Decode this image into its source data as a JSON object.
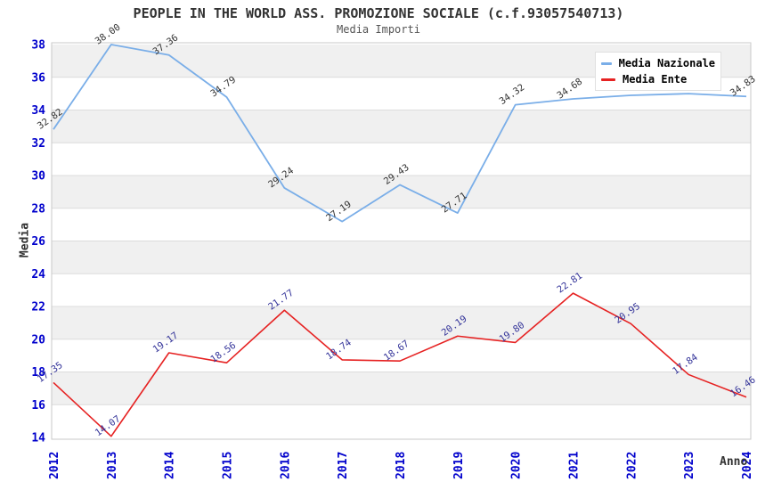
{
  "header": {
    "title": "PEOPLE IN THE WORLD ASS. PROMOZIONE SOCIALE (c.f.93057540713)",
    "subtitle": "Media Importi"
  },
  "colors": {
    "axis_tick_label": "#0000CC",
    "national_line": "#7AAEE8",
    "entity_line": "#E62222",
    "national_point_label": "#333333",
    "entity_point_label": "#333399",
    "band_gray": "#f0f0f0",
    "gridline": "#dcdcdc",
    "plot_border": "#c8c8c8"
  },
  "chart_data": {
    "type": "line",
    "x": [
      2012,
      2013,
      2014,
      2015,
      2016,
      2017,
      2018,
      2019,
      2020,
      2021,
      2022,
      2023,
      2024
    ],
    "series": [
      {
        "name": "Media Nazionale",
        "color": "#7AAEE8",
        "label_color": "#333333",
        "values": [
          32.82,
          38.0,
          37.36,
          34.79,
          29.24,
          27.19,
          29.43,
          27.71,
          34.32,
          34.68,
          34.9,
          35.0,
          34.83
        ],
        "labels": [
          "32.82",
          "38.00",
          "37.36",
          "34.79",
          "29.24",
          "27.19",
          "29.43",
          "27.71",
          "34.32",
          "34.68",
          "",
          "",
          "34.83"
        ]
      },
      {
        "name": "Media Ente",
        "color": "#E62222",
        "label_color": "#333399",
        "values": [
          17.35,
          14.07,
          19.17,
          18.56,
          21.77,
          18.74,
          18.67,
          20.19,
          19.8,
          22.81,
          20.95,
          17.84,
          16.46
        ],
        "labels": [
          "17.35",
          "14.07",
          "19.17",
          "18.56",
          "21.77",
          "18.74",
          "18.67",
          "20.19",
          "19.80",
          "22.81",
          "20.95",
          "17.84",
          "16.46"
        ]
      }
    ],
    "title": "PEOPLE IN THE WORLD ASS. PROMOZIONE SOCIALE (c.f.93057540713)",
    "subtitle": "Media Importi",
    "xlabel": "Anno",
    "ylabel": "Media",
    "ylim": [
      14,
      38
    ],
    "yticks": [
      14,
      16,
      18,
      20,
      22,
      24,
      26,
      28,
      30,
      32,
      34,
      36,
      38
    ],
    "grid": true,
    "legend_position": "top-right"
  }
}
